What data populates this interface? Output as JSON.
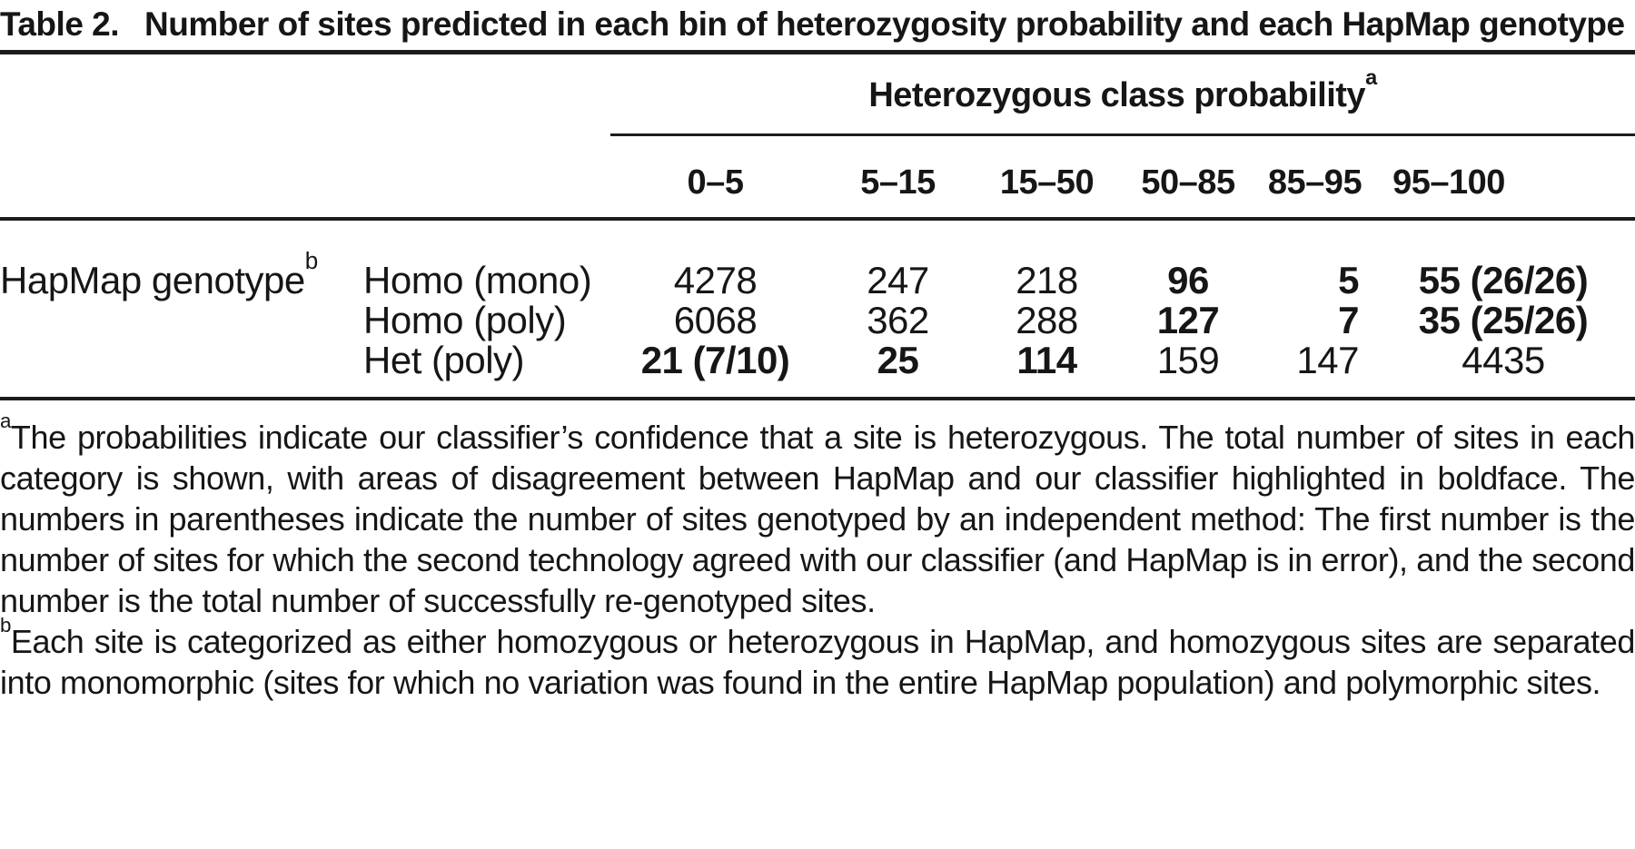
{
  "title": {
    "label": "Table 2.",
    "text": "Number of sites predicted in each bin of heterozygosity probability and each HapMap genotype"
  },
  "table": {
    "group_header": {
      "text": "Heterozygous class probability",
      "superscript": "a"
    },
    "columns": [
      "0–5",
      "5–15",
      "15–50",
      "50–85",
      "85–95",
      "95–100"
    ],
    "stub": {
      "text": "HapMap genotype",
      "superscript": "b"
    },
    "rows": [
      {
        "label": "Homo (mono)",
        "values": [
          "4278",
          "247",
          "218",
          "96",
          "5",
          "55 (26/26)"
        ],
        "bold": [
          false,
          false,
          false,
          true,
          true,
          true
        ]
      },
      {
        "label": "Homo (poly)",
        "values": [
          "6068",
          "362",
          "288",
          "127",
          "7",
          "35 (25/26)"
        ],
        "bold": [
          false,
          false,
          false,
          true,
          true,
          true
        ]
      },
      {
        "label": "Het (poly)",
        "values": [
          "21 (7/10)",
          "25",
          "114",
          "159",
          "147",
          "4435"
        ],
        "bold": [
          true,
          true,
          true,
          false,
          false,
          false
        ]
      }
    ]
  },
  "footnotes": [
    {
      "marker": "a",
      "text": "The probabilities indicate our classifier’s confidence that a site is heterozygous. The total number of sites in each category is shown, with areas of disagreement between HapMap and our classifier highlighted in boldface. The numbers in parentheses indicate the number of sites genotyped by an independent method: The first number is the number of sites for which the second technology agreed with our classifier (and HapMap is in error), and the second number is the total number of successfully re-genotyped sites."
    },
    {
      "marker": "b",
      "text": "Each site is categorized as either homozygous or heterozygous in HapMap, and homozygous sites are separated into monomorphic (sites for which no variation was found in the entire HapMap population) and polymorphic sites."
    }
  ]
}
